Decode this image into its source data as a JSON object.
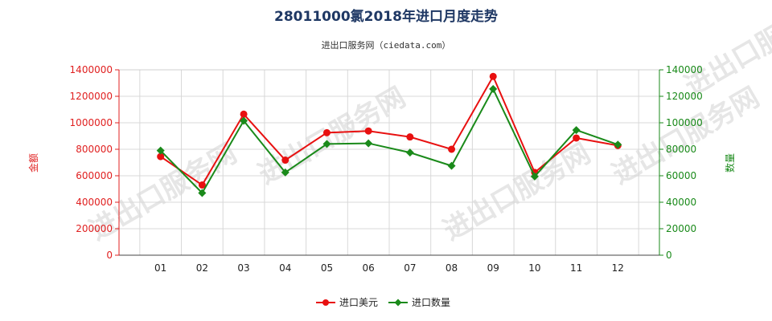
{
  "chart_data": {
    "type": "line",
    "title": "28011000氯2018年进口月度走势",
    "subtitle": "进出口服务网（ciedata.com）",
    "watermark": "进出口服务网",
    "categories": [
      "01",
      "02",
      "03",
      "04",
      "05",
      "06",
      "07",
      "08",
      "09",
      "10",
      "11",
      "12"
    ],
    "ylabel_left": "金额",
    "ylabel_right": "数量",
    "ylim_left": [
      0,
      1400000
    ],
    "ylim_right": [
      0,
      140000
    ],
    "yticks_left": [
      "0",
      "200000",
      "400000",
      "600000",
      "800000",
      "1000000",
      "1200000",
      "1400000"
    ],
    "yticks_right": [
      "0",
      "20000",
      "40000",
      "60000",
      "80000",
      "100000",
      "120000",
      "140000"
    ],
    "grid": true,
    "legend_position": "bottom-center",
    "series": [
      {
        "name": "进口美元",
        "axis": "left",
        "color": "#e81010",
        "marker": "circle",
        "values": [
          745000,
          530000,
          1065000,
          718000,
          925000,
          938000,
          893000,
          800000,
          1350000,
          625000,
          885000,
          828000
        ]
      },
      {
        "name": "进口数量",
        "axis": "right",
        "color": "#1a8a1a",
        "marker": "diamond",
        "values": [
          79000,
          47000,
          101500,
          62500,
          84000,
          84500,
          77500,
          67500,
          125500,
          59500,
          94500,
          83500
        ]
      }
    ]
  }
}
